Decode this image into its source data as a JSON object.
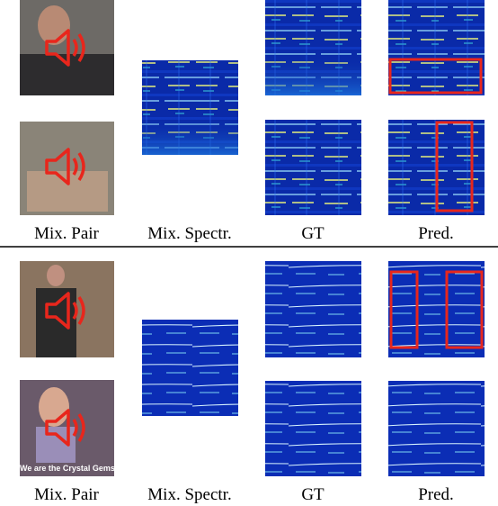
{
  "sections": [
    {
      "labels": [
        "Mix. Pair",
        "Mix. Spectr.",
        "GT",
        "Pred."
      ]
    },
    {
      "labels": [
        "Mix. Pair",
        "Mix. Spectr.",
        "GT",
        "Pred."
      ],
      "video_caption": "We are the Crystal Gems"
    }
  ]
}
